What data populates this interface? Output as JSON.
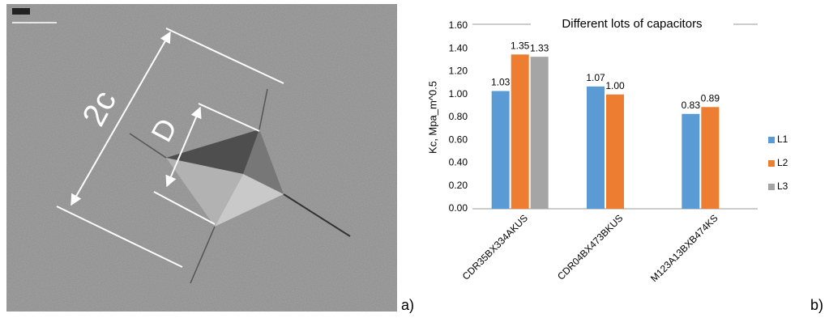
{
  "figure": {
    "panel_labels": [
      "a)",
      "b)"
    ],
    "image_labels": [
      "2c",
      "D"
    ]
  },
  "chart_data": {
    "type": "bar",
    "title": "Different lots of capacitors",
    "y_label": "Kc, Mpa_m^0.5",
    "categories": [
      "CDR35BX334AKUS",
      "CDR04BX473BKUS",
      "M123A13BXB474KS"
    ],
    "series": [
      {
        "name": "L1",
        "color": "#5b9bd5",
        "values": [
          1.03,
          1.07,
          0.83
        ],
        "value_labels": [
          "1.03",
          "1.07",
          "0.83"
        ]
      },
      {
        "name": "L2",
        "color": "#ed7d31",
        "values": [
          1.35,
          1.0,
          0.89
        ],
        "value_labels": [
          "1.35",
          "1.00",
          "0.89"
        ]
      },
      {
        "name": "L3",
        "color": "#a5a5a5",
        "values": [
          1.33,
          null,
          null
        ],
        "value_labels": [
          "1.33",
          null,
          null
        ]
      }
    ],
    "ylim": [
      0,
      1.6
    ],
    "yticks": [
      {
        "value": 0,
        "label": "0.00"
      },
      {
        "value": 0.2,
        "label": "0.20"
      },
      {
        "value": 0.4,
        "label": "0.40"
      },
      {
        "value": 0.6,
        "label": "0.60"
      },
      {
        "value": 0.8,
        "label": "0.80"
      },
      {
        "value": 1.0,
        "label": "1.00"
      },
      {
        "value": 1.2,
        "label": "1.20"
      },
      {
        "value": 1.4,
        "label": "1.40"
      },
      {
        "value": 1.6,
        "label": "1.60"
      }
    ],
    "grid": false,
    "legend": "right"
  }
}
